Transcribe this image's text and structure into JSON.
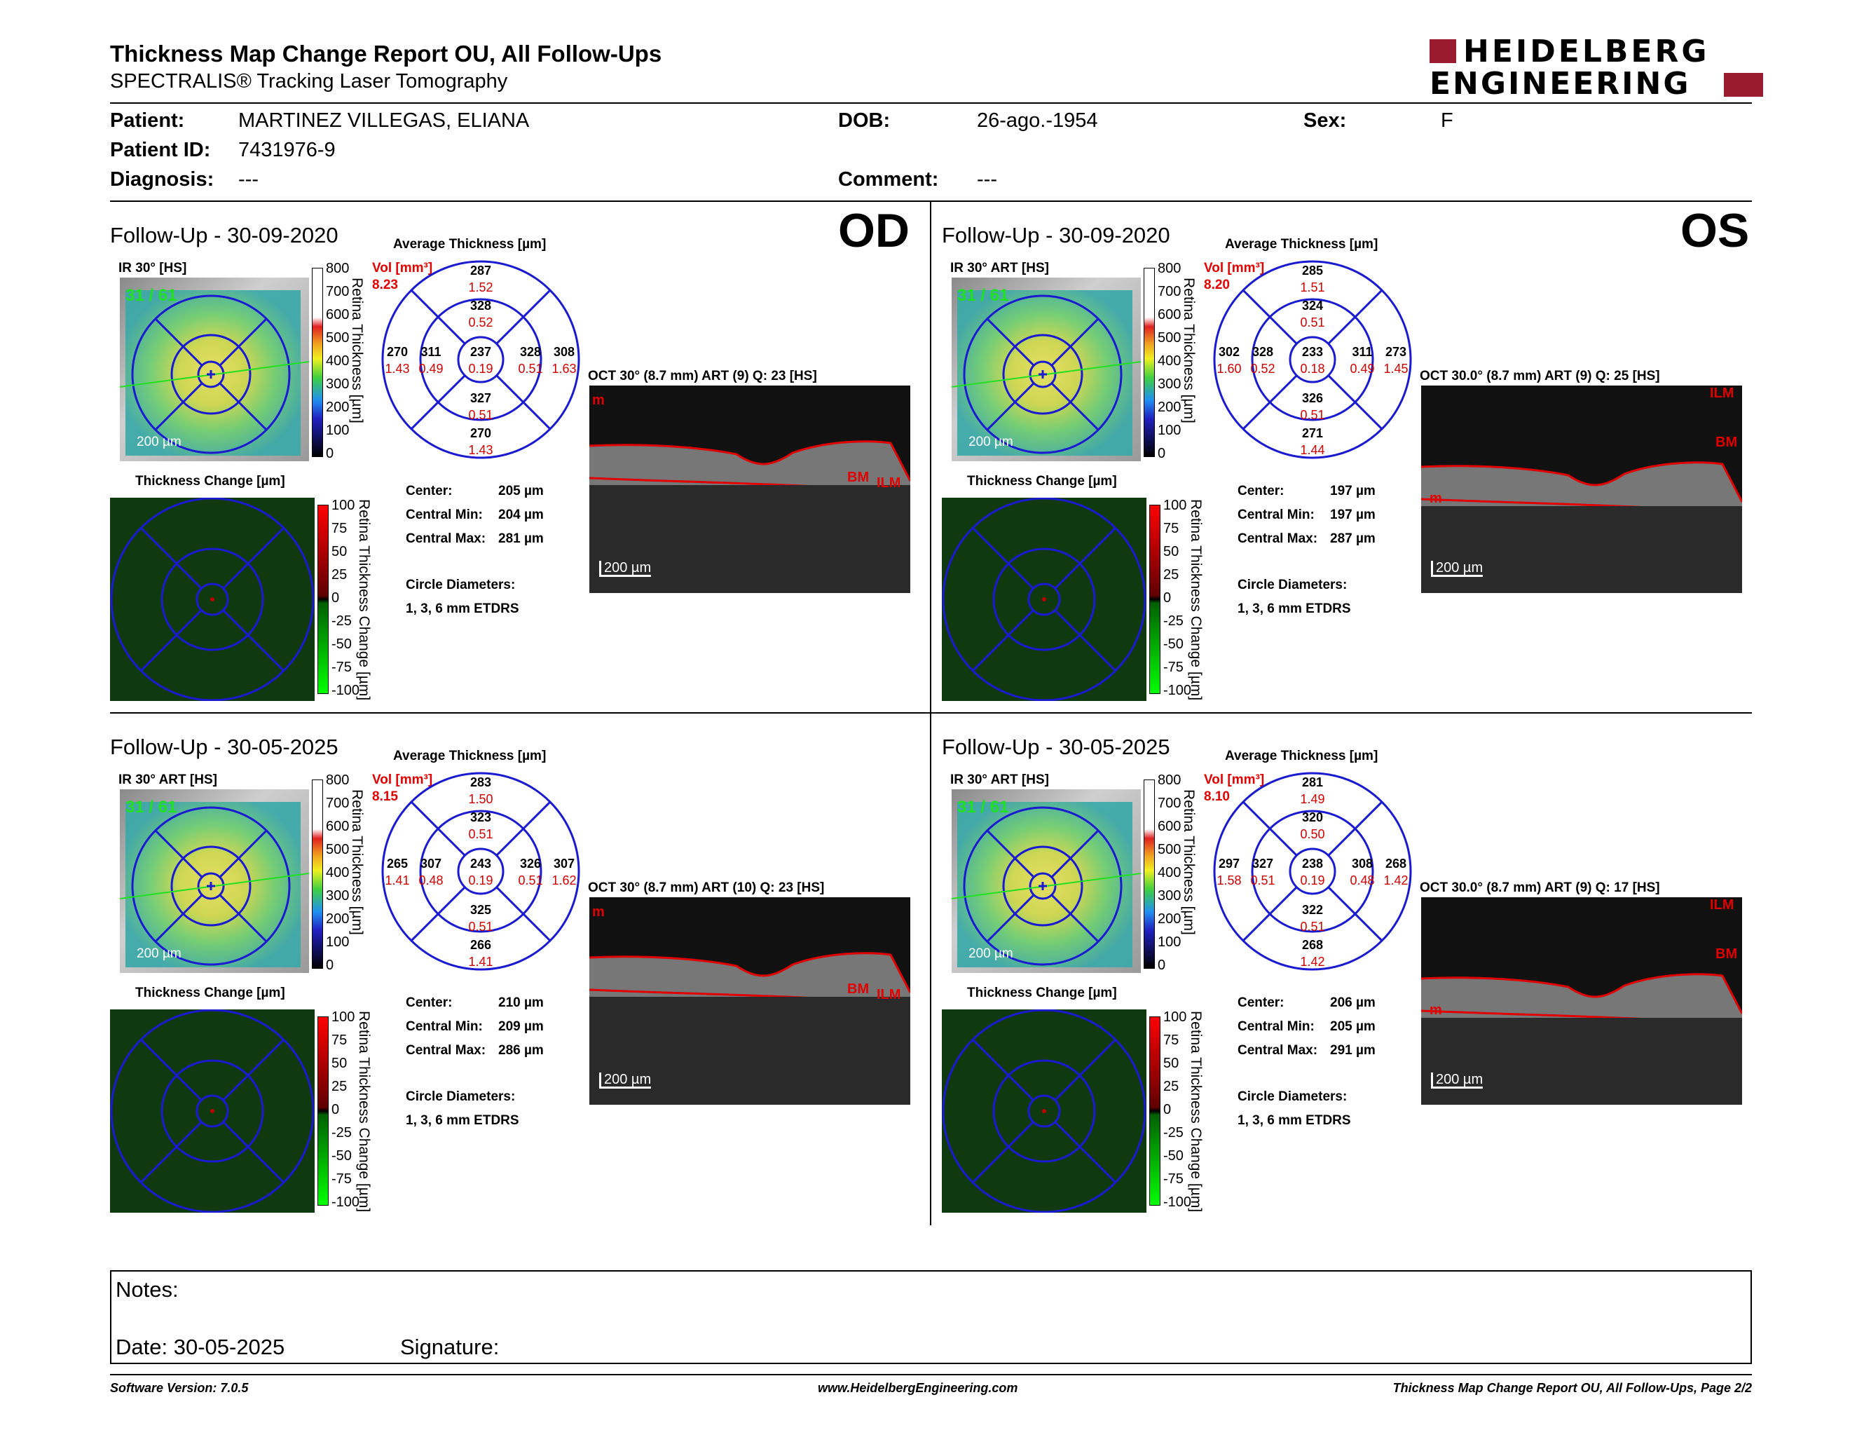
{
  "header": {
    "title": "Thickness Map Change Report OU, All Follow-Ups",
    "subtitle": "SPECTRALIS® Tracking Laser Tomography",
    "logo_line1": "HEIDELBERG",
    "logo_line2": "ENGINEERING"
  },
  "patient": {
    "patient_label": "Patient:",
    "patient_value": "MARTINEZ VILLEGAS, ELIANA",
    "dob_label": "DOB:",
    "dob_value": "26-ago.-1954",
    "sex_label": "Sex:",
    "sex_value": "F",
    "id_label": "Patient ID:",
    "id_value": "7431976-9",
    "diagnosis_label": "Diagnosis:",
    "diagnosis_value": "---",
    "comment_label": "Comment:",
    "comment_value": "---"
  },
  "common": {
    "avg_title": "Average Thickness [µm]",
    "vol_label": "Vol [mm³]",
    "change_title": "Thickness Change [µm]",
    "center_label": "Center:",
    "cmin_label": "Central Min:",
    "cmax_label": "Central Max:",
    "circle_label": "Circle Diameters:",
    "circle_value": "1, 3, 6 mm ETDRS",
    "scale_thick": [
      "800",
      "700",
      "600",
      "500",
      "400",
      "300",
      "200",
      "100",
      "0"
    ],
    "scale_change": [
      "100",
      "75",
      "50",
      "25",
      "0",
      "-25",
      "-50",
      "-75",
      "-100"
    ],
    "vert_thick": "Retina Thickness [µm]",
    "vert_change": "Retina Thickness Change [µm]",
    "scalebar": "200 µm",
    "od": "OD",
    "os": "OS"
  },
  "panels": [
    {
      "followup": "Follow-Up - 30-09-2020",
      "ir_label": "IR 30° [HS]",
      "frame": "31 / 61",
      "vol_total": "8.23",
      "oct_label": "OCT 30° (8.7 mm) ART (9) Q: 23 [HS]",
      "center": "205 µm",
      "cmin": "204 µm",
      "cmax": "281 µm",
      "grid": {
        "top_outer": [
          "287",
          "1.52"
        ],
        "top_inner": [
          "328",
          "0.52"
        ],
        "center": [
          "237",
          "0.19"
        ],
        "left_outer": [
          "270",
          "1.43"
        ],
        "left_inner": [
          "311",
          "0.49"
        ],
        "right_inner": [
          "328",
          "0.51"
        ],
        "right_outer": [
          "308",
          "1.63"
        ],
        "bottom_inner": [
          "327",
          "0.51"
        ],
        "bottom_outer": [
          "270",
          "1.43"
        ]
      },
      "layer_labels": [
        "m",
        "BM",
        "ILM"
      ]
    },
    {
      "followup": "Follow-Up - 30-09-2020",
      "ir_label": "IR 30° ART [HS]",
      "frame": "31 / 61",
      "vol_total": "8.20",
      "oct_label": "OCT 30.0° (8.7 mm) ART (9) Q: 25 [HS]",
      "center": "197 µm",
      "cmin": "197 µm",
      "cmax": "287 µm",
      "grid": {
        "top_outer": [
          "285",
          "1.51"
        ],
        "top_inner": [
          "324",
          "0.51"
        ],
        "center": [
          "233",
          "0.18"
        ],
        "left_outer": [
          "302",
          "1.60"
        ],
        "left_inner": [
          "328",
          "0.52"
        ],
        "right_inner": [
          "311",
          "0.49"
        ],
        "right_outer": [
          "273",
          "1.45"
        ],
        "bottom_inner": [
          "326",
          "0.51"
        ],
        "bottom_outer": [
          "271",
          "1.44"
        ]
      },
      "layer_labels": [
        "ILM",
        "BM",
        "m"
      ]
    },
    {
      "followup": "Follow-Up - 30-05-2025",
      "ir_label": "IR 30° ART [HS]",
      "frame": "31 / 61",
      "vol_total": "8.15",
      "oct_label": "OCT 30° (8.7 mm) ART (10) Q: 23 [HS]",
      "center": "210 µm",
      "cmin": "209 µm",
      "cmax": "286 µm",
      "grid": {
        "top_outer": [
          "283",
          "1.50"
        ],
        "top_inner": [
          "323",
          "0.51"
        ],
        "center": [
          "243",
          "0.19"
        ],
        "left_outer": [
          "265",
          "1.41"
        ],
        "left_inner": [
          "307",
          "0.48"
        ],
        "right_inner": [
          "326",
          "0.51"
        ],
        "right_outer": [
          "307",
          "1.62"
        ],
        "bottom_inner": [
          "325",
          "0.51"
        ],
        "bottom_outer": [
          "266",
          "1.41"
        ]
      },
      "layer_labels": [
        "m",
        "BM",
        "ILM"
      ]
    },
    {
      "followup": "Follow-Up - 30-05-2025",
      "ir_label": "IR 30° ART [HS]",
      "frame": "31 / 61",
      "vol_total": "8.10",
      "oct_label": "OCT 30.0° (8.7 mm) ART (9) Q: 17 [HS]",
      "center": "206 µm",
      "cmin": "205 µm",
      "cmax": "291 µm",
      "grid": {
        "top_outer": [
          "281",
          "1.49"
        ],
        "top_inner": [
          "320",
          "0.50"
        ],
        "center": [
          "238",
          "0.19"
        ],
        "left_outer": [
          "297",
          "1.58"
        ],
        "left_inner": [
          "327",
          "0.51"
        ],
        "right_inner": [
          "308",
          "0.48"
        ],
        "right_outer": [
          "268",
          "1.42"
        ],
        "bottom_inner": [
          "322",
          "0.51"
        ],
        "bottom_outer": [
          "268",
          "1.42"
        ]
      },
      "layer_labels": [
        "ILM",
        "BM",
        "m"
      ]
    }
  ],
  "notes": {
    "notes_label": "Notes:",
    "date_label": "Date: 30-05-2025",
    "signature_label": "Signature:"
  },
  "footer": {
    "software": "Software Version: 7.0.5",
    "website": "www.HeidelbergEngineering.com",
    "page": "Thickness Map Change Report OU, All Follow-Ups, Page 2/2"
  },
  "colors": {
    "logo_red": "#9b1b2e",
    "etdrs_blue": "#1020c0",
    "vol_red": "#d00000",
    "segmentation_red": "#e00000"
  }
}
